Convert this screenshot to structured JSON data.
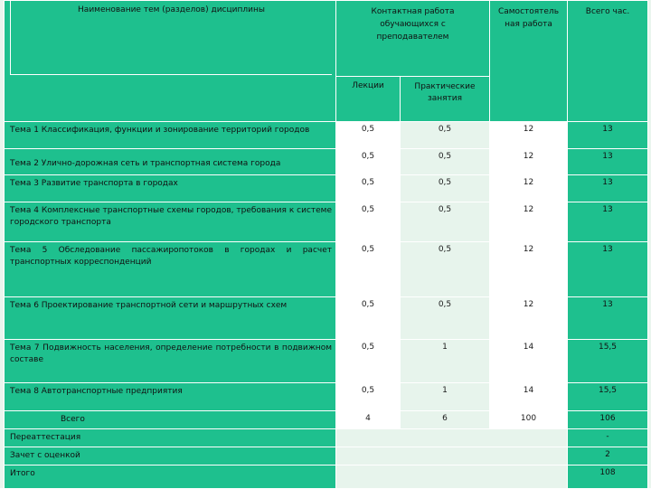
{
  "header": {
    "topic_name": "Наименование тем (разделов) дисциплины",
    "contact_work": "Контактная работа обучающихся с преподавателем",
    "self_work": "Самостоятель ная работа",
    "total_hours": "Всего час.",
    "lectures": "Лекции",
    "practical": "Практические занятия"
  },
  "rows": [
    {
      "topic": "Тема 1 Классификация, функции и зонирование территорий городов",
      "lectures": "0,5",
      "practical": "0,5",
      "self": "12",
      "total": "13"
    },
    {
      "topic": "Тема 2 Улично-дорожная сеть и транспортная система города",
      "lectures": "0,5",
      "practical": "0,5",
      "self": "12",
      "total": "13"
    },
    {
      "topic": "Тема 3 Развитие транспорта в городах",
      "lectures": "0,5",
      "practical": "0,5",
      "self": "12",
      "total": "13"
    },
    {
      "topic": "Тема 4 Комплексные транспортные схемы городов, требования к системе городского транспорта",
      "lectures": "0,5",
      "practical": "0,5",
      "self": "12",
      "total": "13"
    },
    {
      "topic": "Тема 5 Обследование пассажиропотоков в городах и расчет транспортных корреспонденций",
      "lectures": "0,5",
      "practical": "0,5",
      "self": "12",
      "total": "13"
    },
    {
      "topic": "Тема 6 Проектирование транспортной сети и маршрутных схем",
      "lectures": "0,5",
      "practical": "0,5",
      "self": "12",
      "total": "13"
    },
    {
      "topic": "Тема 7 Подвижность населения, определение потребности в подвижном составе",
      "lectures": "0,5",
      "practical": "1",
      "self": "14",
      "total": "15,5"
    },
    {
      "topic": "Тема 8 Автотранспортные предприятия",
      "lectures": "0,5",
      "practical": "1",
      "self": "14",
      "total": "15,5"
    }
  ],
  "total_row": {
    "label": "Всего",
    "lectures": "4",
    "practical": "6",
    "self": "100",
    "total": "106"
  },
  "footer": [
    {
      "label": "Переаттестация",
      "total": "-"
    },
    {
      "label": "Зачет с оценкой",
      "total": "2"
    },
    {
      "label": "Итого",
      "total": "108"
    }
  ]
}
